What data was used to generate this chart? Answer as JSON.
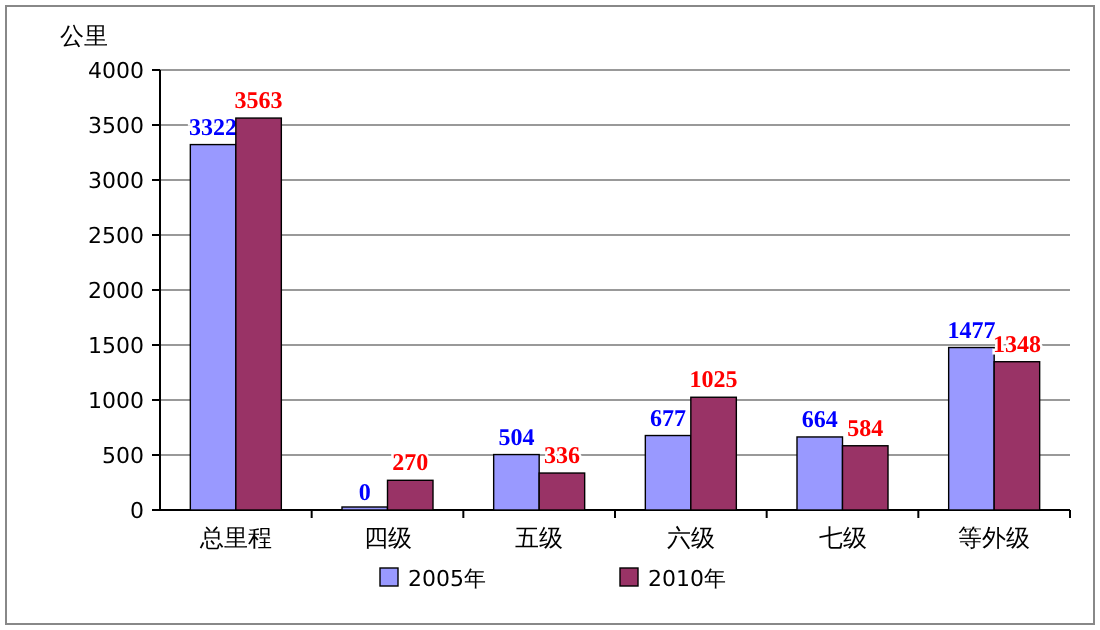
{
  "chart_data": {
    "type": "bar",
    "ylabel": "公里",
    "categories": [
      "总里程",
      "四级",
      "五级",
      "六级",
      "七级",
      "等外级"
    ],
    "series": [
      {
        "name": "2005年",
        "color": "#9999ff",
        "values": [
          3322,
          0,
          504,
          677,
          664,
          1477
        ]
      },
      {
        "name": "2010年",
        "color": "#993366",
        "values": [
          3563,
          270,
          336,
          1025,
          584,
          1348
        ]
      }
    ],
    "ylim": [
      0,
      4000
    ],
    "yticks": [
      0,
      500,
      1000,
      1500,
      2000,
      2500,
      3000,
      3500,
      4000
    ],
    "grid": "y",
    "legend": "bottom",
    "data_labels": true
  }
}
